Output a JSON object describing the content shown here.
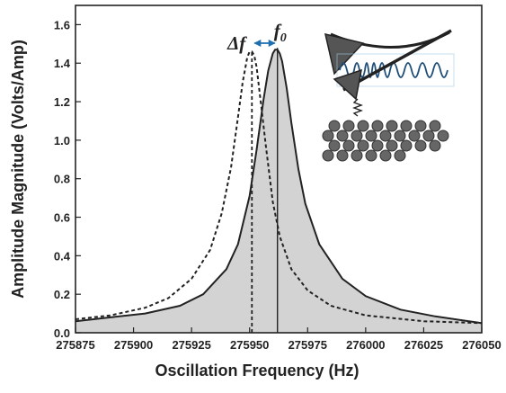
{
  "chart_data": {
    "type": "line",
    "title": "",
    "xlabel": "Oscillation Frequency (Hz)",
    "ylabel": "Amplitude Magnitude (Volts/Amp)",
    "xlim": [
      275875,
      276050
    ],
    "ylim": [
      0.0,
      1.7
    ],
    "x_ticks": [
      275875,
      275900,
      275925,
      275950,
      275975,
      276000,
      276025,
      276050
    ],
    "y_ticks": [
      0.0,
      0.2,
      0.4,
      0.6,
      0.8,
      1.0,
      1.2,
      1.4,
      1.6
    ],
    "grid": false,
    "legend": "none",
    "series": [
      {
        "style": "solid, filled gray",
        "fill_color": "#d3d3d3",
        "line_color": "#222222",
        "resonance_marker_x": 275962,
        "x": [
          275875,
          275890,
          275905,
          275920,
          275930,
          275940,
          275945,
          275950,
          275953,
          275956,
          275958,
          275960,
          275961,
          275962,
          275963,
          275964,
          275966,
          275968,
          275971,
          275974,
          275980,
          275990,
          276000,
          276015,
          276030,
          276050
        ],
        "y": [
          0.06,
          0.08,
          0.1,
          0.14,
          0.2,
          0.33,
          0.46,
          0.71,
          0.95,
          1.21,
          1.36,
          1.45,
          1.47,
          1.47,
          1.45,
          1.41,
          1.27,
          1.09,
          0.85,
          0.67,
          0.46,
          0.28,
          0.19,
          0.12,
          0.085,
          0.05
        ]
      },
      {
        "style": "dashed",
        "line_color": "#222222",
        "resonance_marker_x": 275951,
        "x": [
          275875,
          275890,
          275905,
          275915,
          275925,
          275933,
          275938,
          275942,
          275945,
          275947,
          275949,
          275950,
          275951,
          275952,
          275953,
          275955,
          275957,
          275960,
          275963,
          275968,
          275975,
          275985,
          276000,
          276025,
          276050
        ],
        "y": [
          0.07,
          0.09,
          0.13,
          0.18,
          0.28,
          0.43,
          0.62,
          0.86,
          1.12,
          1.3,
          1.43,
          1.46,
          1.46,
          1.44,
          1.38,
          1.18,
          0.97,
          0.68,
          0.5,
          0.33,
          0.22,
          0.14,
          0.09,
          0.06,
          0.05
        ]
      }
    ],
    "annotations": {
      "delta_f": "Δf",
      "f0_base": "f",
      "f0_sub": "0"
    }
  }
}
